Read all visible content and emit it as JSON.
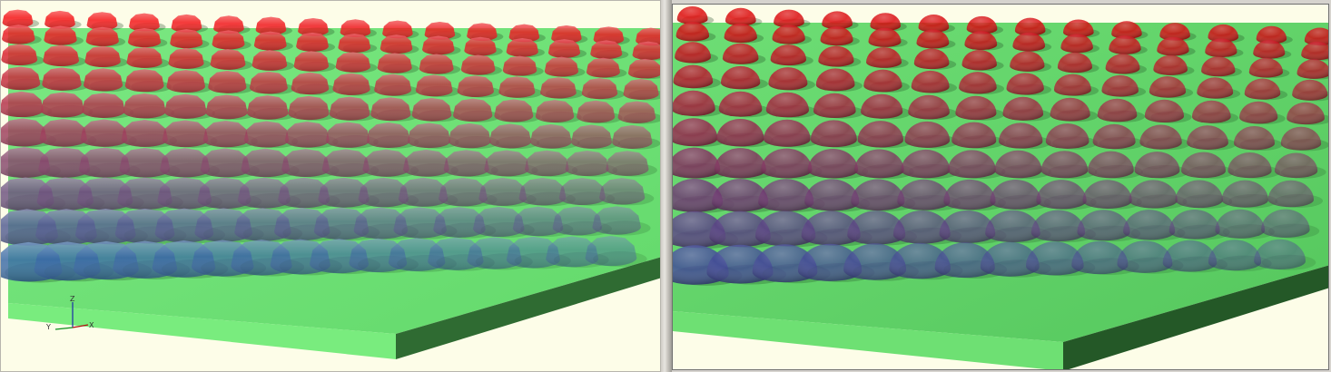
{
  "viewports": [
    {
      "id": "left",
      "style": "faceted",
      "colors": {
        "background": "#fdfde8",
        "plate_top": "#6fe676",
        "plate_front": "#79ec7e",
        "plate_side": "#2f6b32",
        "dome_top": "#ff1010",
        "dome_bottom": "#2b6fb0"
      },
      "triad": {
        "x_label": "X",
        "y_label": "Y",
        "z_label": "Z"
      }
    },
    {
      "id": "right",
      "style": "smooth",
      "colors": {
        "background": "#fdfde8",
        "plate_top": "#63d66a",
        "plate_front": "#6ee073",
        "plate_side": "#245827",
        "dome_top": "#e00808",
        "dome_bottom": "#3a4fa0"
      }
    }
  ],
  "splitter": {
    "icon": "splitter-grip-icon"
  }
}
